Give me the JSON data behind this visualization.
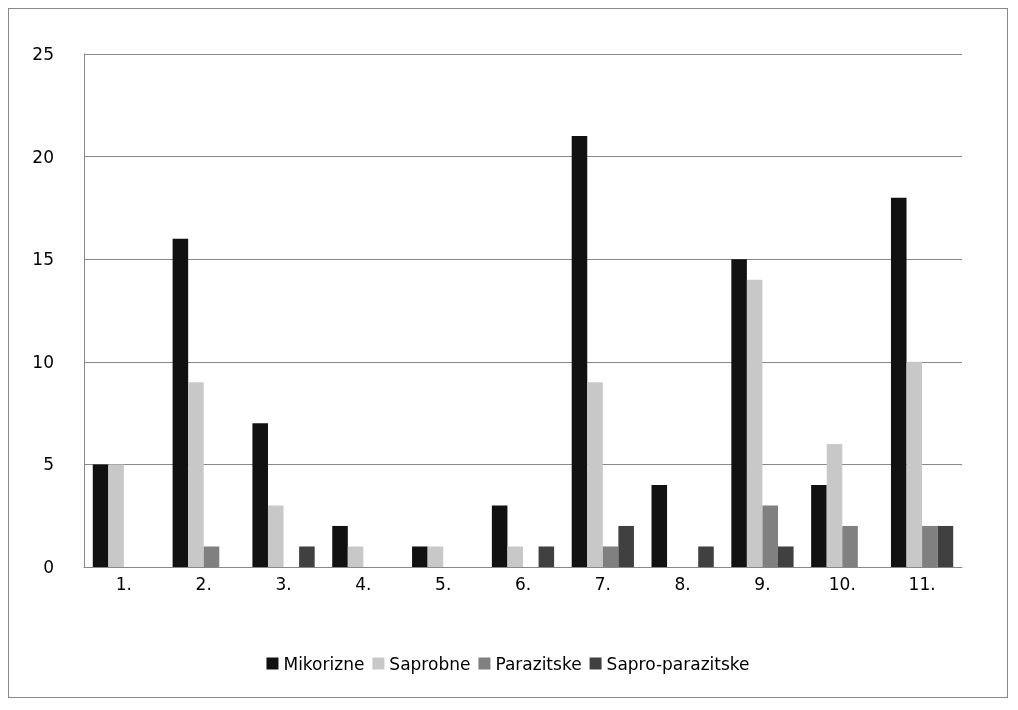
{
  "chart_data": {
    "type": "bar",
    "categories": [
      "1.",
      "2.",
      "3.",
      "4.",
      "5.",
      "6.",
      "7.",
      "8.",
      "9.",
      "10.",
      "11."
    ],
    "series": [
      {
        "name": "Mikorizne",
        "color": "#111111",
        "values": [
          5,
          16,
          7,
          2,
          1,
          3,
          21,
          4,
          15,
          4,
          18
        ]
      },
      {
        "name": "Saprobne",
        "color": "#c8c8c8",
        "values": [
          5,
          9,
          3,
          1,
          1,
          1,
          9,
          0,
          14,
          6,
          10
        ]
      },
      {
        "name": "Parazitske",
        "color": "#808080",
        "values": [
          0,
          1,
          0,
          0,
          0,
          0,
          1,
          0,
          3,
          2,
          2
        ]
      },
      {
        "name": "Sapro-parazitske",
        "color": "#404040",
        "values": [
          0,
          0,
          1,
          0,
          0,
          1,
          2,
          1,
          1,
          0,
          2
        ]
      }
    ],
    "ylim": [
      0,
      25
    ],
    "yticks": [
      0,
      5,
      10,
      15,
      20,
      25
    ],
    "grid": "y",
    "legend": "bottom"
  }
}
